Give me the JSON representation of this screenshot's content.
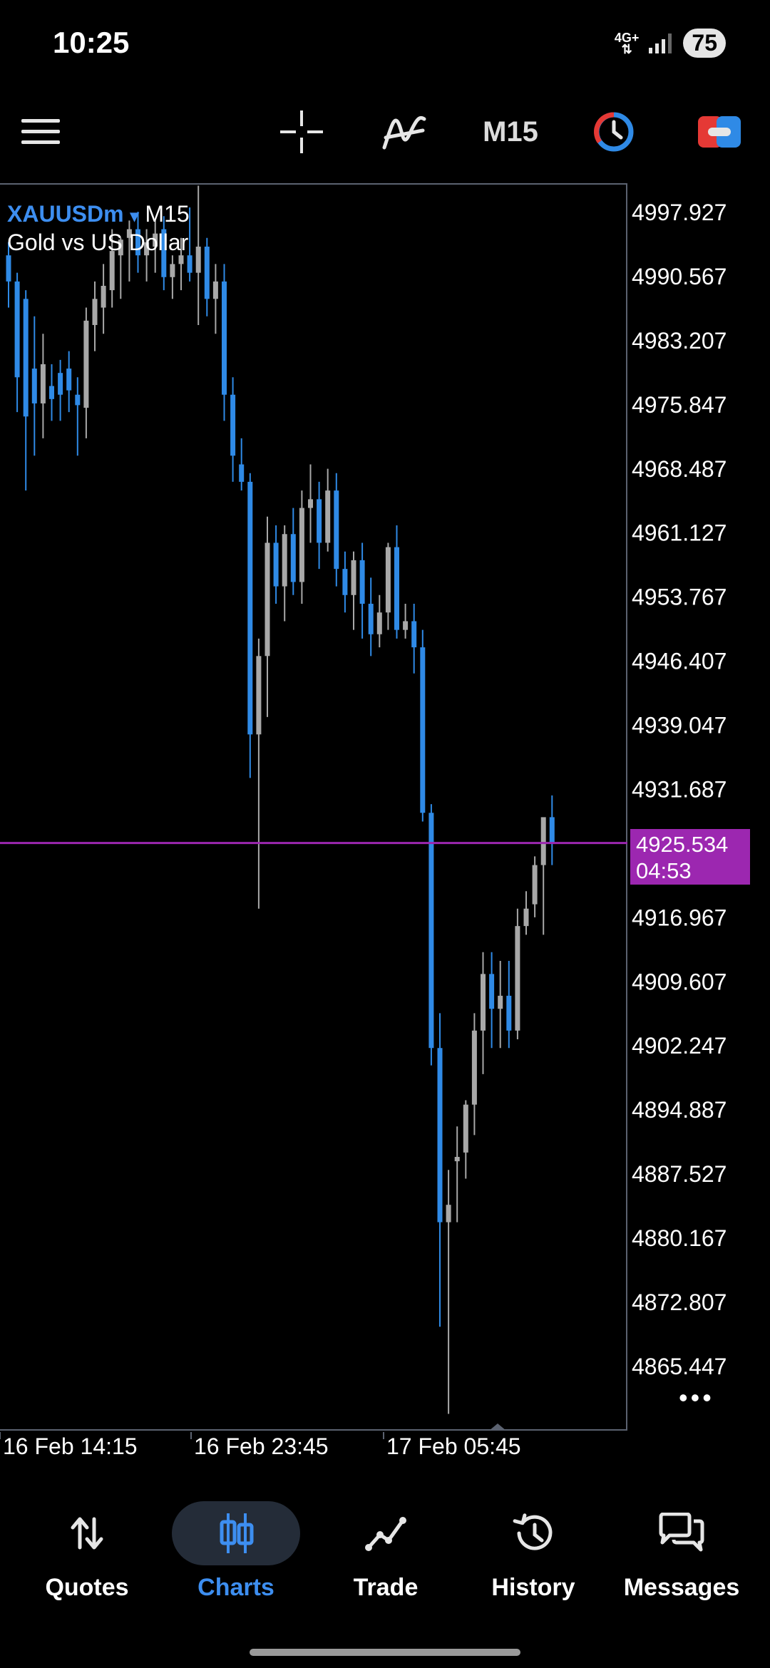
{
  "status_bar": {
    "time": "10:25",
    "network_label_top": "4G+",
    "network_label_bottom": "⇅",
    "battery": "75"
  },
  "toolbar": {
    "menu_icon": "hamburger-icon",
    "crosshair_icon": "crosshair-icon",
    "indicators_icon": "indicator-icon",
    "timeframe": "M15",
    "clock_icon": "clock-icon",
    "trade_icon": "one-click-trade-icon"
  },
  "chart": {
    "symbol": "XAUUSDm",
    "dropdown_arrow": "▾",
    "timeframe": "M15",
    "description": "Gold vs US Dollar",
    "current_price": "4925.534",
    "countdown": "04:53",
    "more_label": "•••",
    "colors": {
      "bull": "#a8a8a8",
      "bear": "#2f8ae6",
      "price_line": "#9c27b0",
      "frame": "#5b6270"
    }
  },
  "chart_data": {
    "type": "candlestick",
    "title": "XAUUSDm M15",
    "ylim": [
      4860.0,
      5003.0
    ],
    "y_ticks": [
      "4997.927",
      "4990.567",
      "4983.207",
      "4975.847",
      "4968.487",
      "4961.127",
      "4953.767",
      "4946.407",
      "4939.047",
      "4931.687",
      "4916.967",
      "4909.607",
      "4902.247",
      "4894.887",
      "4887.527",
      "4880.167",
      "4872.807",
      "4865.447"
    ],
    "x_tick_labels": [
      "16 Feb 14:15",
      "16 Feb 23:45",
      "17 Feb 05:45"
    ],
    "current_price": 4925.534,
    "candles": [
      [
        4993.0,
        4994.5,
        4987.0,
        4990.0
      ],
      [
        4990.0,
        4991.0,
        4975.0,
        4979.0
      ],
      [
        4988.0,
        4989.0,
        4966.0,
        4974.5
      ],
      [
        4980.0,
        4986.0,
        4970.0,
        4976.0
      ],
      [
        4976.0,
        4984.0,
        4972.0,
        4980.5
      ],
      [
        4978.0,
        4980.5,
        4974.0,
        4976.5
      ],
      [
        4979.5,
        4981.0,
        4974.0,
        4977.0
      ],
      [
        4980.0,
        4982.0,
        4975.0,
        4977.5
      ],
      [
        4977.0,
        4979.0,
        4970.0,
        4975.8
      ],
      [
        4975.5,
        4987.0,
        4972.0,
        4985.5
      ],
      [
        4985.0,
        4990.0,
        4982.0,
        4988.0
      ],
      [
        4987.0,
        4992.0,
        4984.0,
        4989.5
      ],
      [
        4989.0,
        4996.0,
        4987.0,
        4993.5
      ],
      [
        4993.0,
        4995.0,
        4988.0,
        4994.8
      ],
      [
        4995.0,
        4997.0,
        4990.0,
        4996.0
      ],
      [
        4996.0,
        4998.0,
        4991.0,
        4993.0
      ],
      [
        4993.0,
        4996.0,
        4990.0,
        4994.5
      ],
      [
        4994.0,
        4997.0,
        4991.0,
        4995.5
      ],
      [
        4996.0,
        4997.5,
        4989.0,
        4990.5
      ],
      [
        4990.5,
        4993.0,
        4988.0,
        4992.0
      ],
      [
        4992.0,
        4995.0,
        4989.0,
        4993.0
      ],
      [
        4993.0,
        4998.5,
        4990.0,
        4991.0
      ],
      [
        4991.0,
        5001.0,
        4985.0,
        4994.0
      ],
      [
        4994.0,
        4995.0,
        4986.0,
        4988.0
      ],
      [
        4988.0,
        4992.0,
        4984.0,
        4990.0
      ],
      [
        4990.0,
        4992.0,
        4974.0,
        4977.0
      ],
      [
        4977.0,
        4979.0,
        4967.0,
        4970.0
      ],
      [
        4969.0,
        4972.0,
        4966.0,
        4967.0
      ],
      [
        4967.0,
        4968.0,
        4933.0,
        4938.0
      ],
      [
        4938.0,
        4949.0,
        4918.0,
        4947.0
      ],
      [
        4947.0,
        4963.0,
        4940.0,
        4960.0
      ],
      [
        4960.0,
        4962.0,
        4953.0,
        4955.0
      ],
      [
        4955.0,
        4962.0,
        4951.0,
        4961.0
      ],
      [
        4961.0,
        4964.0,
        4954.0,
        4955.5
      ],
      [
        4955.5,
        4966.0,
        4953.0,
        4964.0
      ],
      [
        4964.0,
        4969.0,
        4960.0,
        4965.0
      ],
      [
        4965.0,
        4967.0,
        4957.0,
        4960.0
      ],
      [
        4960.0,
        4968.5,
        4959.0,
        4966.0
      ],
      [
        4966.0,
        4968.0,
        4955.0,
        4957.0
      ],
      [
        4957.0,
        4959.0,
        4952.0,
        4954.0
      ],
      [
        4954.0,
        4959.0,
        4950.0,
        4958.0
      ],
      [
        4958.0,
        4960.0,
        4949.0,
        4953.0
      ],
      [
        4953.0,
        4956.0,
        4947.0,
        4949.5
      ],
      [
        4949.5,
        4954.0,
        4948.0,
        4952.0
      ],
      [
        4952.0,
        4960.0,
        4950.0,
        4959.5
      ],
      [
        4959.5,
        4962.0,
        4949.0,
        4950.0
      ],
      [
        4950.0,
        4953.0,
        4949.0,
        4951.0
      ],
      [
        4951.0,
        4953.0,
        4945.0,
        4948.0
      ],
      [
        4948.0,
        4950.0,
        4928.0,
        4929.0
      ],
      [
        4929.0,
        4930.0,
        4900.0,
        4902.0
      ],
      [
        4902.0,
        4906.0,
        4870.0,
        4882.0
      ],
      [
        4882.0,
        4888.0,
        4860.0,
        4884.0
      ],
      [
        4889.0,
        4893.0,
        4882.0,
        4889.5
      ],
      [
        4890.0,
        4896.0,
        4887.0,
        4895.5
      ],
      [
        4895.5,
        4906.0,
        4892.0,
        4904.0
      ],
      [
        4904.0,
        4913.0,
        4899.0,
        4910.5
      ],
      [
        4910.5,
        4913.0,
        4902.0,
        4906.5
      ],
      [
        4906.5,
        4912.0,
        4902.0,
        4908.0
      ],
      [
        4908.0,
        4912.0,
        4902.0,
        4904.0
      ],
      [
        4904.0,
        4918.0,
        4903.0,
        4916.0
      ],
      [
        4916.0,
        4920.0,
        4915.0,
        4918.0
      ],
      [
        4918.5,
        4924.0,
        4917.0,
        4923.0
      ],
      [
        4923.0,
        4927.5,
        4915.0,
        4928.5
      ],
      [
        4928.5,
        4931.0,
        4923.0,
        4925.5
      ]
    ]
  },
  "bottom_nav": {
    "items": [
      {
        "label": "Quotes",
        "icon": "quotes-arrows-icon"
      },
      {
        "label": "Charts",
        "icon": "candlesticks-icon"
      },
      {
        "label": "Trade",
        "icon": "trade-line-icon"
      },
      {
        "label": "History",
        "icon": "history-clock-icon"
      },
      {
        "label": "Messages",
        "icon": "messages-chat-icon"
      }
    ],
    "active": "Charts"
  }
}
